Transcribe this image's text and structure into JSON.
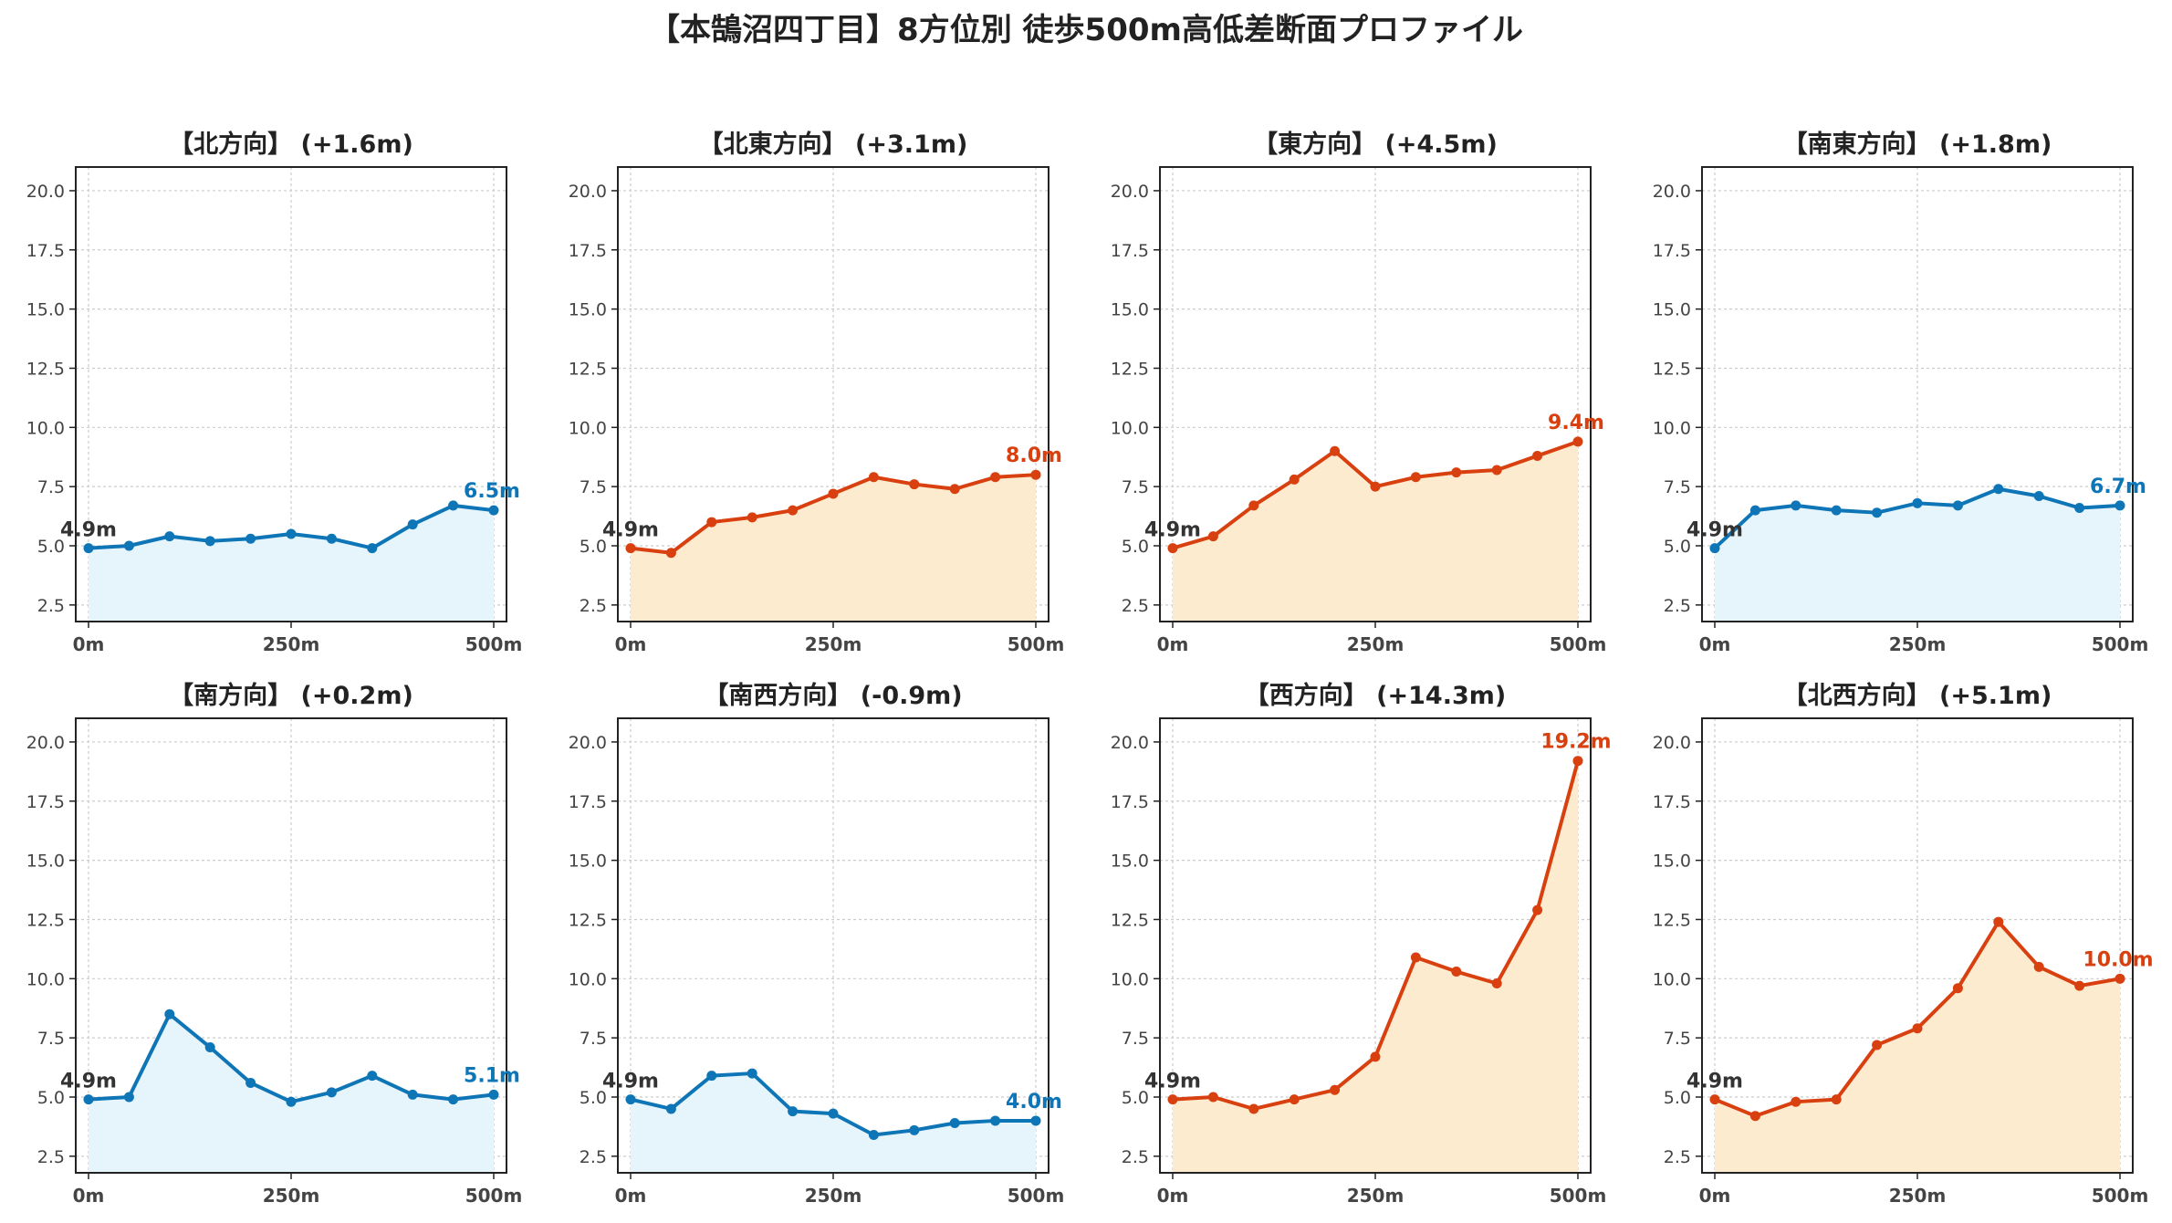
{
  "title": "【本鵠沼四丁目】8方位別 徒歩500m高低差断面プロファイル",
  "colors": {
    "up_line": "#d9400f",
    "up_fill": "#fdebd0",
    "down_line": "#0e75b6",
    "down_fill": "#e6f4fb",
    "start_label": "#333333",
    "grid": "#cccccc",
    "axis": "#222222"
  },
  "chart_data": [
    {
      "type": "area",
      "title": "【北方向】 (+1.6m)",
      "trend": "flat",
      "x": [
        0,
        50,
        100,
        150,
        200,
        250,
        300,
        350,
        400,
        450,
        500
      ],
      "y": [
        4.9,
        5.0,
        5.4,
        5.2,
        5.3,
        5.5,
        5.3,
        4.9,
        5.9,
        6.7,
        6.5
      ],
      "start_label": "4.9m",
      "end_label": "6.5m",
      "xticks": [
        "0m",
        "250m",
        "500m"
      ],
      "ylim": [
        1.8,
        21.0
      ],
      "yticks": [
        "2.5",
        "5.0",
        "7.5",
        "10.0",
        "12.5",
        "15.0",
        "17.5",
        "20.0"
      ],
      "grid": true
    },
    {
      "type": "area",
      "title": "【北東方向】 (+3.1m)",
      "trend": "up",
      "x": [
        0,
        50,
        100,
        150,
        200,
        250,
        300,
        350,
        400,
        450,
        500
      ],
      "y": [
        4.9,
        4.7,
        6.0,
        6.2,
        6.5,
        7.2,
        7.9,
        7.6,
        7.4,
        7.9,
        8.0
      ],
      "start_label": "4.9m",
      "end_label": "8.0m",
      "xticks": [
        "0m",
        "250m",
        "500m"
      ],
      "ylim": [
        1.8,
        21.0
      ],
      "yticks": [
        "2.5",
        "5.0",
        "7.5",
        "10.0",
        "12.5",
        "15.0",
        "17.5",
        "20.0"
      ],
      "grid": true
    },
    {
      "type": "area",
      "title": "【東方向】 (+4.5m)",
      "trend": "up",
      "x": [
        0,
        50,
        100,
        150,
        200,
        250,
        300,
        350,
        400,
        450,
        500
      ],
      "y": [
        4.9,
        5.4,
        6.7,
        7.8,
        9.0,
        7.5,
        7.9,
        8.1,
        8.2,
        8.8,
        9.4
      ],
      "start_label": "4.9m",
      "end_label": "9.4m",
      "xticks": [
        "0m",
        "250m",
        "500m"
      ],
      "ylim": [
        1.8,
        21.0
      ],
      "yticks": [
        "2.5",
        "5.0",
        "7.5",
        "10.0",
        "12.5",
        "15.0",
        "17.5",
        "20.0"
      ],
      "grid": true
    },
    {
      "type": "area",
      "title": "【南東方向】 (+1.8m)",
      "trend": "flat",
      "x": [
        0,
        50,
        100,
        150,
        200,
        250,
        300,
        350,
        400,
        450,
        500
      ],
      "y": [
        4.9,
        6.5,
        6.7,
        6.5,
        6.4,
        6.8,
        6.7,
        7.4,
        7.1,
        6.6,
        6.7
      ],
      "start_label": "4.9m",
      "end_label": "6.7m",
      "xticks": [
        "0m",
        "250m",
        "500m"
      ],
      "ylim": [
        1.8,
        21.0
      ],
      "yticks": [
        "2.5",
        "5.0",
        "7.5",
        "10.0",
        "12.5",
        "15.0",
        "17.5",
        "20.0"
      ],
      "grid": true
    },
    {
      "type": "area",
      "title": "【南方向】 (+0.2m)",
      "trend": "flat",
      "x": [
        0,
        50,
        100,
        150,
        200,
        250,
        300,
        350,
        400,
        450,
        500
      ],
      "y": [
        4.9,
        5.0,
        8.5,
        7.1,
        5.6,
        4.8,
        5.2,
        5.9,
        5.1,
        4.9,
        5.1
      ],
      "start_label": "4.9m",
      "end_label": "5.1m",
      "xticks": [
        "0m",
        "250m",
        "500m"
      ],
      "ylim": [
        1.8,
        21.0
      ],
      "yticks": [
        "2.5",
        "5.0",
        "7.5",
        "10.0",
        "12.5",
        "15.0",
        "17.5",
        "20.0"
      ],
      "grid": true
    },
    {
      "type": "area",
      "title": "【南西方向】 (-0.9m)",
      "trend": "flat",
      "x": [
        0,
        50,
        100,
        150,
        200,
        250,
        300,
        350,
        400,
        450,
        500
      ],
      "y": [
        4.9,
        4.5,
        5.9,
        6.0,
        4.4,
        4.3,
        3.4,
        3.6,
        3.9,
        4.0,
        4.0
      ],
      "start_label": "4.9m",
      "end_label": "4.0m",
      "xticks": [
        "0m",
        "250m",
        "500m"
      ],
      "ylim": [
        1.8,
        21.0
      ],
      "yticks": [
        "2.5",
        "5.0",
        "7.5",
        "10.0",
        "12.5",
        "15.0",
        "17.5",
        "20.0"
      ],
      "grid": true
    },
    {
      "type": "area",
      "title": "【西方向】 (+14.3m)",
      "trend": "up",
      "x": [
        0,
        50,
        100,
        150,
        200,
        250,
        300,
        350,
        400,
        450,
        500
      ],
      "y": [
        4.9,
        5.0,
        4.5,
        4.9,
        5.3,
        6.7,
        10.9,
        10.3,
        9.8,
        12.9,
        19.2
      ],
      "start_label": "4.9m",
      "end_label": "19.2m",
      "xticks": [
        "0m",
        "250m",
        "500m"
      ],
      "ylim": [
        1.8,
        21.0
      ],
      "yticks": [
        "2.5",
        "5.0",
        "7.5",
        "10.0",
        "12.5",
        "15.0",
        "17.5",
        "20.0"
      ],
      "grid": true
    },
    {
      "type": "area",
      "title": "【北西方向】 (+5.1m)",
      "trend": "up",
      "x": [
        0,
        50,
        100,
        150,
        200,
        250,
        300,
        350,
        400,
        450,
        500
      ],
      "y": [
        4.9,
        4.2,
        4.8,
        4.9,
        7.2,
        7.9,
        9.6,
        12.4,
        10.5,
        9.7,
        10.0
      ],
      "start_label": "4.9m",
      "end_label": "10.0m",
      "xticks": [
        "0m",
        "250m",
        "500m"
      ],
      "ylim": [
        1.8,
        21.0
      ],
      "yticks": [
        "2.5",
        "5.0",
        "7.5",
        "10.0",
        "12.5",
        "15.0",
        "17.5",
        "20.0"
      ],
      "grid": true
    }
  ]
}
